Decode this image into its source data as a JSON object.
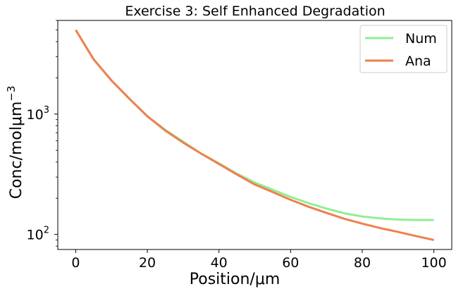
{
  "chart_data": {
    "type": "line",
    "title": "Exercise 3: Self Enhanced Degradation",
    "xlabel": "Position/μm",
    "ylabel": "Conc/molμm",
    "ylabel_exponent": "−3",
    "x_scale": "linear",
    "y_scale": "log",
    "xlim": [
      -5,
      105
    ],
    "ylim": [
      75,
      6000
    ],
    "x_ticks": [
      0,
      20,
      40,
      60,
      80,
      100
    ],
    "x_tick_labels": [
      "0",
      "20",
      "40",
      "60",
      "80",
      "100"
    ],
    "y_ticks": [
      {
        "value": 100,
        "base": "10",
        "exponent": "2"
      },
      {
        "value": 1000,
        "base": "10",
        "exponent": "3"
      }
    ],
    "grid": false,
    "legend_position": "top-right",
    "series": [
      {
        "name": "Num",
        "color": "#90ee90",
        "x": [
          0,
          5,
          10,
          15,
          20,
          25,
          30,
          35,
          40,
          45,
          50,
          55,
          60,
          65,
          70,
          75,
          80,
          85,
          90,
          95,
          100
        ],
        "y": [
          5000,
          2860,
          1900,
          1340,
          960,
          740,
          590,
          470,
          390,
          320,
          270,
          235,
          205,
          182,
          164,
          150,
          141,
          136,
          133,
          132,
          132
        ]
      },
      {
        "name": "Ana",
        "color": "#f07f4e",
        "x": [
          0,
          5,
          10,
          15,
          20,
          25,
          30,
          35,
          40,
          45,
          50,
          55,
          60,
          65,
          70,
          75,
          80,
          85,
          90,
          95,
          100
        ],
        "y": [
          5000,
          2850,
          1900,
          1340,
          960,
          730,
          580,
          470,
          385,
          315,
          260,
          225,
          194,
          170,
          151,
          135,
          123,
          113,
          105,
          97,
          90
        ]
      }
    ]
  }
}
